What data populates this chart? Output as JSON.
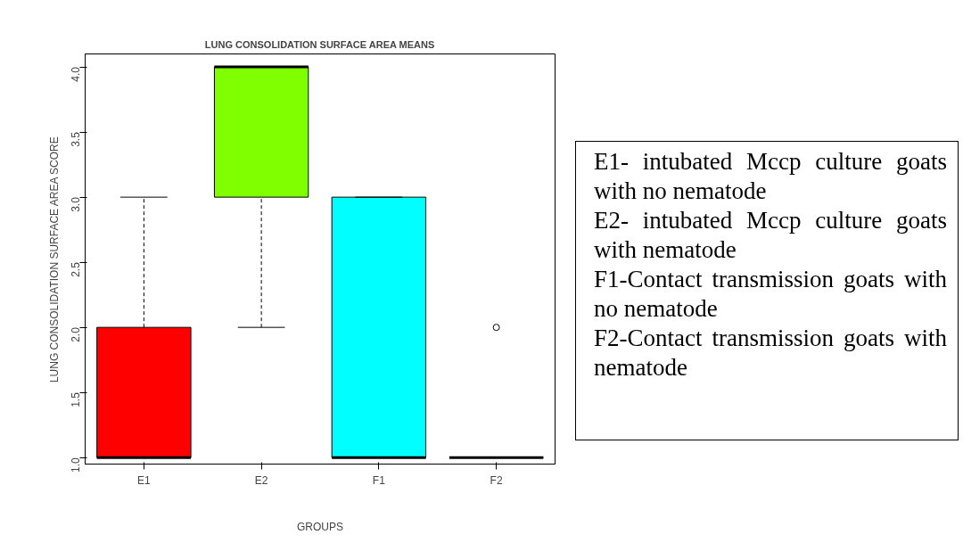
{
  "chart_data": {
    "type": "box",
    "title": "LUNG CONSOLIDATION SURFACE AREA MEANS",
    "xlabel": "GROUPS",
    "ylabel": "LUNG CONSOLIDATION SURFACE AREA SCORE",
    "categories": [
      "E1",
      "E2",
      "F1",
      "F2"
    ],
    "colors": [
      "#ff0000",
      "#7fff00",
      "#00ffff",
      "#000000"
    ],
    "boxes": [
      {
        "low": 1,
        "q1": 1,
        "median": 1,
        "q3": 2,
        "high": 3
      },
      {
        "low": 2,
        "q1": 3,
        "median": 4,
        "q3": 4,
        "high": 4
      },
      {
        "low": 1,
        "q1": 1,
        "median": 1,
        "q3": 3,
        "high": 3
      },
      {
        "low": 1,
        "q1": 1,
        "median": 1,
        "q3": 1,
        "high": 1,
        "outliers": [
          2
        ]
      }
    ],
    "ylim": [
      0.95,
      4.1
    ],
    "yticks": [
      {
        "value": 1,
        "label": "1.0"
      },
      {
        "value": 1.5,
        "label": "1.5"
      },
      {
        "value": 2,
        "label": "2.0"
      },
      {
        "value": 2.5,
        "label": "2.5"
      },
      {
        "value": 3,
        "label": "3.0"
      },
      {
        "value": 3.5,
        "label": "3.5"
      },
      {
        "value": 4,
        "label": "4.0"
      }
    ],
    "grid": false,
    "annotations": [
      "E1- intubated Mccp culture goats with no nematode",
      "E2- intubated Mccp culture goats with nematode",
      "F1-Contact transmission goats with no nematode",
      "F2-Contact transmission goats with nematode"
    ]
  }
}
